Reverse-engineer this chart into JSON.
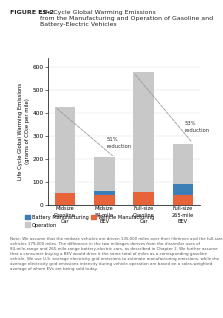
{
  "categories": [
    "Midsize\nGasoline\nCar",
    "Midsize\n84-mile\nBEV",
    "Full-size\nGasoline\nCar",
    "Full-size\n265-mile\nBEV"
  ],
  "vehicle_mfg": [
    50,
    40,
    55,
    40
  ],
  "battery_mfg": [
    0,
    20,
    0,
    50
  ],
  "operation": [
    375,
    145,
    520,
    175
  ],
  "colors": {
    "vehicle_mfg": "#E8633A",
    "battery_mfg": "#3B7FB6",
    "operation": "#C8C8C8"
  },
  "ylim": [
    0,
    640
  ],
  "yticks": [
    0,
    100,
    200,
    300,
    400,
    500,
    600
  ],
  "ylabel": "Life Cycle Global Warming Emissions\n(grams of CO₂e per mile)",
  "title_prefix": "FIGURE ES-2  ",
  "title_main": "Life Cycle Global Warming Emissions\nfrom the Manufacturing and Operation of Gasoline and\nBattery-Electric Vehicles",
  "annot1_text": "51%\nreduction",
  "annot2_text": "53%\nreduction",
  "note": "Note: We assume that the midsize vehicles are driven 135,000 miles over their lifetimes and the full-size vehicles 179,000 miles. The difference in the two mileages derives from the dissimilar uses of 84-mile-range and 265-mile-range battery-electric cars, as described in Chapter 2. We further assume that a consumer buying a BEV would drive it the same total of miles as a corresponding gasoline vehicle. We use U.S. average electricity grid emissions to estimate manufacturing emissions, while the average electricity grid emissions intensity during vehicle operation are based on a sales-weighted average of where EVs are being sold today.",
  "bg_color": "#FFFFFF",
  "title_color": "#222222",
  "note_color": "#555555"
}
